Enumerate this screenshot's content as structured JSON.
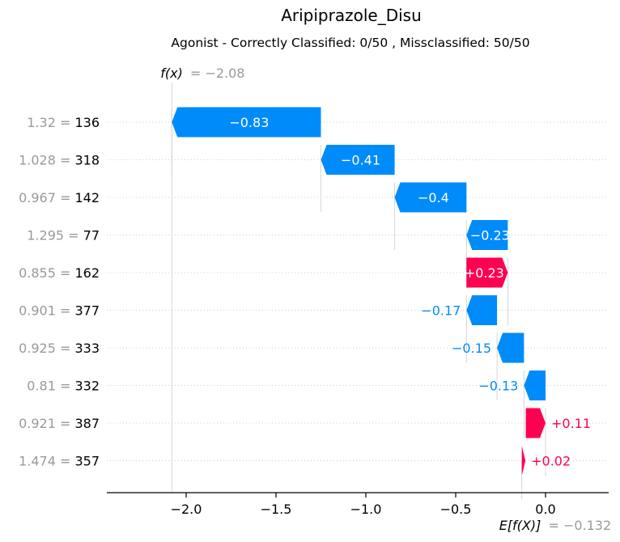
{
  "chart_data": {
    "type": "waterfall",
    "title": "Aripiprazole_Disu",
    "subtitle": "Agonist - Correctly Classified: 0/50 , Missclassified: 50/50",
    "fx_label": "f(x)",
    "fx_value_text": "= −2.08",
    "fx": -2.08,
    "base_label": "E[f(X)]",
    "base_value_text": "= −0.132",
    "base_value": -0.132,
    "xlim": [
      -2.43,
      0.35
    ],
    "xticks": [
      {
        "value": -2.0,
        "label": "−2.0"
      },
      {
        "value": -1.5,
        "label": "−1.5"
      },
      {
        "value": -1.0,
        "label": "−1.0"
      },
      {
        "value": -0.5,
        "label": "−0.5"
      },
      {
        "value": 0.0,
        "label": "0.0"
      }
    ],
    "features": [
      {
        "value": "1.32",
        "name": "136",
        "start": -1.25,
        "end": -2.08,
        "label": "−0.83"
      },
      {
        "value": "1.028",
        "name": "318",
        "start": -0.84,
        "end": -1.25,
        "label": "−0.41"
      },
      {
        "value": "0.967",
        "name": "142",
        "start": -0.44,
        "end": -0.84,
        "label": "−0.4"
      },
      {
        "value": "1.295",
        "name": "77",
        "start": -0.21,
        "end": -0.44,
        "label": "−0.23"
      },
      {
        "value": "0.855",
        "name": "162",
        "start": -0.44,
        "end": -0.21,
        "label": "+0.23"
      },
      {
        "value": "0.901",
        "name": "377",
        "start": -0.27,
        "end": -0.44,
        "label": "−0.17"
      },
      {
        "value": "0.925",
        "name": "333",
        "start": -0.12,
        "end": -0.27,
        "label": "−0.15"
      },
      {
        "value": "0.81",
        "name": "332",
        "start": 0.0,
        "end": -0.12,
        "label": "−0.13"
      },
      {
        "value": "0.921",
        "name": "387",
        "start": -0.11,
        "end": 0.0,
        "label": "+0.11"
      },
      {
        "value": "1.474",
        "name": "357",
        "start": -0.132,
        "end": -0.112,
        "label": "+0.02"
      }
    ],
    "colors": {
      "positive": "#ff0051",
      "negative": "#008bfb",
      "muted": "#999999",
      "axis": "#000000",
      "grid": "#cccccc"
    }
  }
}
